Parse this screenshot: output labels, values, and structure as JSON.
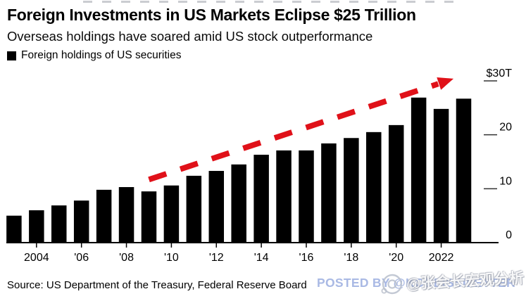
{
  "header": {
    "title": "Foreign Investments in US Markets Eclipse $25 Trillion",
    "subtitle": "Overseas holdings have soared amid US stock outperformance"
  },
  "legend": {
    "label": "Foreign holdings of US securities",
    "marker_color": "#000000"
  },
  "chart_data": {
    "type": "bar",
    "title": "Foreign Investments in US Markets Eclipse $25 Trillion",
    "unit": "USD trillions",
    "series_name": "Foreign holdings of US securities",
    "categories": [
      2003,
      2004,
      2005,
      2006,
      2007,
      2008,
      2009,
      2010,
      2011,
      2012,
      2013,
      2014,
      2015,
      2016,
      2017,
      2018,
      2019,
      2020,
      2021,
      2022,
      2023
    ],
    "values": [
      5.0,
      6.0,
      6.9,
      7.8,
      9.8,
      10.3,
      9.5,
      10.6,
      12.4,
      13.3,
      14.5,
      16.3,
      17.1,
      17.1,
      18.4,
      19.4,
      20.5,
      21.8,
      26.9,
      24.8,
      26.7
    ],
    "bar_color": "#000000",
    "grid": false,
    "legend_position": "top-left",
    "ylim": [
      0,
      30
    ],
    "x_tick_labels": [
      {
        "index": 1,
        "label": "2004"
      },
      {
        "index": 3,
        "label": "'06"
      },
      {
        "index": 5,
        "label": "'08"
      },
      {
        "index": 7,
        "label": "'10"
      },
      {
        "index": 9,
        "label": "'12"
      },
      {
        "index": 11,
        "label": "'14"
      },
      {
        "index": 13,
        "label": "'16"
      },
      {
        "index": 15,
        "label": "'18"
      },
      {
        "index": 17,
        "label": "'20"
      },
      {
        "index": 19,
        "label": "2022"
      }
    ],
    "y_ticks": [
      {
        "label": "$30T",
        "value": 30
      },
      {
        "label": "20",
        "value": 20
      },
      {
        "label": "10",
        "value": 10
      },
      {
        "label": "0",
        "value": 0
      }
    ],
    "trend_arrow": {
      "style": "dashed",
      "color": "#e01119",
      "from": {
        "year": 2009,
        "value": 11.7
      },
      "to": {
        "year": 2022.55,
        "value": 30.4
      }
    }
  },
  "footer": {
    "source": "Source: US Department of the Treasury, Federal Reserve Board"
  },
  "watermarks": {
    "posted_by": "POSTED BY @KOBEISSILETTER",
    "posted_by_color": "#a9b9e4",
    "weibo_handle": "@张会长宏观分析",
    "weibo_icon": "weibo-camera-icon"
  }
}
